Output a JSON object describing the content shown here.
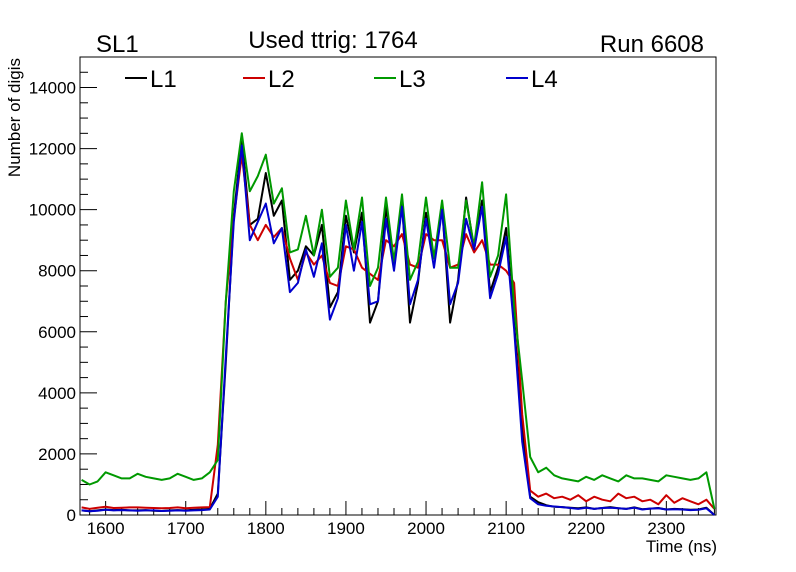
{
  "chart_data": {
    "type": "line",
    "title": "Used ttrig: 1764",
    "left_label": "SL1",
    "right_label": "Run 6608",
    "xlabel": "Time (ns)",
    "ylabel": "Number of digis",
    "xlim": [
      1568,
      2362
    ],
    "ylim": [
      0,
      15000
    ],
    "x_ticks": [
      1600,
      1700,
      1800,
      1900,
      2000,
      2100,
      2200,
      2300
    ],
    "y_ticks": [
      0,
      2000,
      4000,
      6000,
      8000,
      10000,
      12000,
      14000
    ],
    "grid": false,
    "legend_position": "top",
    "x": [
      1570,
      1580,
      1590,
      1600,
      1610,
      1620,
      1630,
      1640,
      1650,
      1660,
      1670,
      1680,
      1690,
      1700,
      1710,
      1720,
      1730,
      1740,
      1750,
      1760,
      1770,
      1780,
      1790,
      1800,
      1810,
      1820,
      1830,
      1840,
      1850,
      1860,
      1870,
      1880,
      1890,
      1900,
      1910,
      1920,
      1930,
      1940,
      1950,
      1960,
      1970,
      1980,
      1990,
      2000,
      2010,
      2020,
      2030,
      2040,
      2050,
      2060,
      2070,
      2080,
      2090,
      2100,
      2110,
      2120,
      2130,
      2140,
      2150,
      2160,
      2170,
      2180,
      2190,
      2200,
      2210,
      2220,
      2230,
      2240,
      2250,
      2260,
      2270,
      2280,
      2290,
      2300,
      2310,
      2320,
      2330,
      2340,
      2350,
      2360
    ],
    "series": [
      {
        "name": "L1",
        "color": "#000000",
        "values": [
          150,
          120,
          150,
          180,
          160,
          170,
          150,
          150,
          160,
          140,
          130,
          150,
          160,
          150,
          170,
          180,
          200,
          700,
          5000,
          9800,
          12300,
          9500,
          9700,
          11200,
          9800,
          10300,
          7700,
          8000,
          8800,
          8500,
          9500,
          6800,
          7300,
          9800,
          8600,
          9900,
          6300,
          7000,
          10100,
          8100,
          10200,
          6300,
          7600,
          9900,
          8400,
          10100,
          6300,
          7700,
          10400,
          8700,
          10300,
          7300,
          8100,
          9400,
          6300,
          2800,
          600,
          420,
          320,
          270,
          260,
          240,
          220,
          250,
          200,
          230,
          260,
          220,
          200,
          250,
          190,
          210,
          230,
          180,
          200,
          190,
          170,
          180,
          240,
          0
        ]
      },
      {
        "name": "L2",
        "color": "#cc0000",
        "values": [
          250,
          200,
          240,
          270,
          230,
          240,
          250,
          250,
          240,
          230,
          220,
          230,
          250,
          220,
          240,
          250,
          260,
          2300,
          7000,
          9700,
          11800,
          9500,
          9000,
          9500,
          9100,
          9400,
          8400,
          7700,
          8600,
          8200,
          8500,
          7600,
          7500,
          8800,
          8700,
          8100,
          7900,
          7700,
          9000,
          8800,
          9200,
          8200,
          8100,
          9200,
          9000,
          9000,
          8100,
          8200,
          9200,
          8600,
          9000,
          8200,
          8200,
          8000,
          7600,
          3300,
          800,
          600,
          700,
          550,
          600,
          500,
          650,
          450,
          600,
          500,
          450,
          700,
          550,
          600,
          450,
          500,
          350,
          650,
          400,
          550,
          450,
          350,
          500,
          200
        ]
      },
      {
        "name": "L3",
        "color": "#009900",
        "values": [
          1150,
          1000,
          1100,
          1400,
          1300,
          1200,
          1200,
          1350,
          1250,
          1200,
          1150,
          1200,
          1350,
          1250,
          1150,
          1200,
          1400,
          1800,
          7000,
          10600,
          12500,
          10600,
          11100,
          11800,
          10200,
          10700,
          8600,
          8700,
          9800,
          8500,
          10000,
          7800,
          8100,
          10300,
          8700,
          10400,
          7500,
          8100,
          10400,
          8300,
          10500,
          7700,
          8300,
          10400,
          8400,
          10300,
          8100,
          8100,
          10300,
          8800,
          10900,
          7800,
          8500,
          10500,
          6800,
          4400,
          1900,
          1400,
          1550,
          1300,
          1200,
          1150,
          1100,
          1250,
          1150,
          1300,
          1200,
          1100,
          1300,
          1200,
          1200,
          1150,
          1100,
          1300,
          1250,
          1200,
          1150,
          1200,
          1400,
          200
        ]
      },
      {
        "name": "L4",
        "color": "#0000cc",
        "values": [
          150,
          120,
          140,
          170,
          150,
          160,
          150,
          140,
          150,
          150,
          130,
          140,
          150,
          140,
          150,
          160,
          180,
          600,
          5200,
          9600,
          12100,
          9000,
          9600,
          10200,
          8900,
          9400,
          7300,
          7600,
          8700,
          7800,
          8900,
          6400,
          7100,
          9500,
          8000,
          9600,
          6900,
          7000,
          9700,
          8000,
          10100,
          6900,
          7700,
          9700,
          8100,
          10000,
          6900,
          7600,
          9700,
          8700,
          10100,
          7100,
          7900,
          9100,
          6100,
          2400,
          550,
          350,
          300,
          280,
          260,
          230,
          200,
          240,
          200,
          230,
          240,
          220,
          200,
          240,
          180,
          210,
          220,
          180,
          190,
          180,
          160,
          170,
          220,
          0
        ]
      }
    ]
  }
}
